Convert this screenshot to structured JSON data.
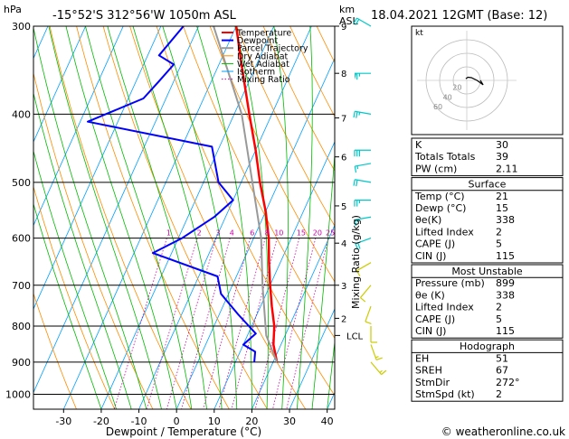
{
  "header": {
    "p_unit": "hPa",
    "location": "-15°52'S  312°56'W  1050m  ASL",
    "km_label": "km",
    "asl_label": "ASL",
    "datetime": "18.04.2021  12GMT  (Base: 12)"
  },
  "footer": {
    "copyright": "© weatheronline.co.uk"
  },
  "colors": {
    "temperature": "#ff0000",
    "dewpoint": "#0000ff",
    "parcel": "#999999",
    "dry_adiabat": "#ff8c00",
    "wet_adiabat": "#00bb00",
    "isotherm": "#00a0ff",
    "mixing_ratio": "#cc00aa",
    "wind_barb": "#00c8c8",
    "wind_barb_low": "#cccc00"
  },
  "chart_data": {
    "type": "line",
    "title": "",
    "xlabel": "Dewpoint / Temperature (°C)",
    "ylabel": "",
    "right_axis_label": "Mixing Ratio (g/kg)",
    "x_ticks": [
      -30,
      -20,
      -10,
      0,
      10,
      20,
      30,
      40
    ],
    "xlim": [
      -38,
      42
    ],
    "p_ticks": [
      300,
      400,
      500,
      600,
      700,
      800,
      900,
      1000
    ],
    "plim": [
      300,
      1050
    ],
    "skew": "skew-T log-P",
    "km_ticks": [
      {
        "p": 300,
        "label": "9"
      },
      {
        "p": 350,
        "label": "8"
      },
      {
        "p": 405,
        "label": "7"
      },
      {
        "p": 460,
        "label": "6"
      },
      {
        "p": 540,
        "label": "5"
      },
      {
        "p": 610,
        "label": "4"
      },
      {
        "p": 700,
        "label": "3"
      },
      {
        "p": 780,
        "label": "2"
      }
    ],
    "lcl": {
      "p": 825,
      "label": "LCL"
    },
    "mixing_ratio_labels": [
      {
        "w": 1,
        "label": "1"
      },
      {
        "w": 2,
        "label": "2"
      },
      {
        "w": 3,
        "label": "3"
      },
      {
        "w": 4,
        "label": "4"
      },
      {
        "w": 6,
        "label": "6"
      },
      {
        "w": 8,
        "label": "8"
      },
      {
        "w": 10,
        "label": "10"
      },
      {
        "w": 15,
        "label": "15"
      },
      {
        "w": 20,
        "label": "20"
      },
      {
        "w": 25,
        "label": "25"
      }
    ],
    "legend": [
      "Temperature",
      "Dewpoint",
      "Parcel Trajectory",
      "Dry Adiabat",
      "Wet Adiabat",
      "Isotherm",
      "Mixing Ratio"
    ],
    "series": [
      {
        "name": "Temperature",
        "points": [
          {
            "p": 300,
            "t": -30
          },
          {
            "p": 340,
            "t": -24
          },
          {
            "p": 400,
            "t": -16
          },
          {
            "p": 450,
            "t": -10
          },
          {
            "p": 500,
            "t": -5
          },
          {
            "p": 550,
            "t": 0
          },
          {
            "p": 600,
            "t": 4
          },
          {
            "p": 650,
            "t": 7
          },
          {
            "p": 700,
            "t": 10
          },
          {
            "p": 750,
            "t": 13
          },
          {
            "p": 800,
            "t": 16
          },
          {
            "p": 850,
            "t": 18
          },
          {
            "p": 900,
            "t": 21
          }
        ]
      },
      {
        "name": "Dewpoint",
        "points": [
          {
            "p": 300,
            "t": -44
          },
          {
            "p": 330,
            "t": -47
          },
          {
            "p": 340,
            "t": -42
          },
          {
            "p": 360,
            "t": -44
          },
          {
            "p": 380,
            "t": -46
          },
          {
            "p": 410,
            "t": -58
          },
          {
            "p": 445,
            "t": -22
          },
          {
            "p": 500,
            "t": -16
          },
          {
            "p": 530,
            "t": -10
          },
          {
            "p": 560,
            "t": -13
          },
          {
            "p": 600,
            "t": -19
          },
          {
            "p": 630,
            "t": -25
          },
          {
            "p": 680,
            "t": -5
          },
          {
            "p": 720,
            "t": -2
          },
          {
            "p": 770,
            "t": 5
          },
          {
            "p": 820,
            "t": 12
          },
          {
            "p": 850,
            "t": 10
          },
          {
            "p": 870,
            "t": 14
          },
          {
            "p": 900,
            "t": 15
          }
        ]
      },
      {
        "name": "Parcel Trajectory",
        "points": [
          {
            "p": 300,
            "t": -36
          },
          {
            "p": 400,
            "t": -18
          },
          {
            "p": 500,
            "t": -7
          },
          {
            "p": 600,
            "t": 2
          },
          {
            "p": 700,
            "t": 8
          },
          {
            "p": 825,
            "t": 15
          },
          {
            "p": 900,
            "t": 21
          }
        ]
      }
    ],
    "wind_barbs": [
      {
        "p": 300,
        "dir": 300,
        "kt": 20
      },
      {
        "p": 350,
        "dir": 270,
        "kt": 65
      },
      {
        "p": 400,
        "dir": 280,
        "kt": 25
      },
      {
        "p": 450,
        "dir": 270,
        "kt": 30
      },
      {
        "p": 470,
        "dir": 260,
        "kt": 15
      },
      {
        "p": 500,
        "dir": 280,
        "kt": 20
      },
      {
        "p": 530,
        "dir": 270,
        "kt": 25
      },
      {
        "p": 560,
        "dir": 260,
        "kt": 15
      },
      {
        "p": 600,
        "dir": 250,
        "kt": 20
      },
      {
        "p": 650,
        "dir": 240,
        "kt": 10
      },
      {
        "p": 700,
        "dir": 220,
        "kt": 10
      },
      {
        "p": 750,
        "dir": 200,
        "kt": 10
      },
      {
        "p": 800,
        "dir": 180,
        "kt": 10
      },
      {
        "p": 850,
        "dir": 160,
        "kt": 15
      },
      {
        "p": 900,
        "dir": 140,
        "kt": 15
      }
    ]
  },
  "hodograph": {
    "unit_label": "kt",
    "ring_labels": [
      "20",
      "40",
      "60"
    ],
    "trace": [
      {
        "dir": 150,
        "kt": 3
      },
      {
        "dir": 200,
        "kt": 5
      },
      {
        "dir": 240,
        "kt": 8
      },
      {
        "dir": 270,
        "kt": 15
      },
      {
        "dir": 285,
        "kt": 25
      },
      {
        "dir": 270,
        "kt": 20
      }
    ]
  },
  "indices": {
    "rows": [
      {
        "label": "K",
        "value": "30"
      },
      {
        "label": "Totals Totals",
        "value": "39"
      },
      {
        "label": "PW (cm)",
        "value": "2.11"
      }
    ]
  },
  "surface": {
    "title": "Surface",
    "rows": [
      {
        "label": "Temp (°C)",
        "value": "21"
      },
      {
        "label": "Dewp (°C)",
        "value": "15"
      },
      {
        "label": "θe(K)",
        "value": "338"
      },
      {
        "label": "Lifted Index",
        "value": "2"
      },
      {
        "label": "CAPE (J)",
        "value": "5"
      },
      {
        "label": "CIN (J)",
        "value": "115"
      }
    ]
  },
  "most_unstable": {
    "title": "Most Unstable",
    "rows": [
      {
        "label": "Pressure (mb)",
        "value": "899"
      },
      {
        "label": "θe (K)",
        "value": "338"
      },
      {
        "label": "Lifted Index",
        "value": "2"
      },
      {
        "label": "CAPE (J)",
        "value": "5"
      },
      {
        "label": "CIN (J)",
        "value": "115"
      }
    ]
  },
  "hodograph_stats": {
    "title": "Hodograph",
    "rows": [
      {
        "label": "EH",
        "value": "51"
      },
      {
        "label": "SREH",
        "value": "67"
      },
      {
        "label": "StmDir",
        "value": "272°"
      },
      {
        "label": "StmSpd (kt)",
        "value": "2"
      }
    ]
  }
}
